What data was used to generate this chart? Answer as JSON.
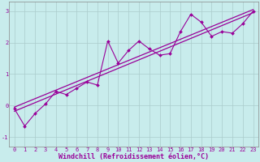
{
  "title": "",
  "xlabel": "Windchill (Refroidissement éolien,°C)",
  "ylabel": "",
  "bg_color": "#c8ecec",
  "line_color": "#990099",
  "grid_color": "#aacccc",
  "x_data": [
    0,
    1,
    2,
    3,
    4,
    5,
    6,
    7,
    8,
    9,
    10,
    11,
    12,
    13,
    14,
    15,
    16,
    17,
    18,
    19,
    20,
    21,
    22,
    23
  ],
  "y_data": [
    -0.1,
    -0.65,
    -0.25,
    0.05,
    0.45,
    0.35,
    0.55,
    0.75,
    0.65,
    2.05,
    1.35,
    1.75,
    2.05,
    1.8,
    1.6,
    1.65,
    2.35,
    2.9,
    2.65,
    2.2,
    2.35,
    2.3,
    2.6,
    3.0
  ],
  "trend1_start": -0.18,
  "trend1_end": 2.95,
  "trend2_start": -0.05,
  "trend2_end": 3.05,
  "xlim": [
    -0.5,
    23.5
  ],
  "ylim": [
    -1.3,
    3.3
  ],
  "yticks": [
    -1,
    0,
    1,
    2,
    3
  ],
  "xticks": [
    0,
    1,
    2,
    3,
    4,
    5,
    6,
    7,
    8,
    9,
    10,
    11,
    12,
    13,
    14,
    15,
    16,
    17,
    18,
    19,
    20,
    21,
    22,
    23
  ],
  "tick_fontsize": 5.0,
  "xlabel_fontsize": 6.0
}
